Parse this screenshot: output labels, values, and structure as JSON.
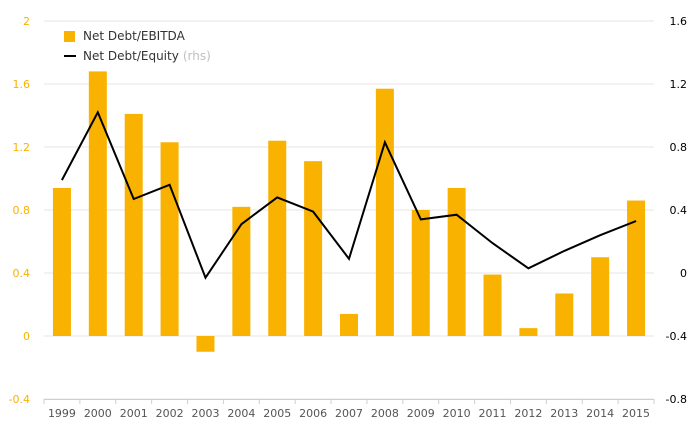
{
  "chart_data": {
    "type": "bar",
    "categories": [
      "1999",
      "2000",
      "2001",
      "2002",
      "2003",
      "2004",
      "2005",
      "2006",
      "2007",
      "2008",
      "2009",
      "2010",
      "2011",
      "2012",
      "2013",
      "2014",
      "2015"
    ],
    "series": [
      {
        "name": "Net Debt/EBITDA",
        "type": "bar",
        "axis": "left",
        "color": "#f9b200",
        "values": [
          0.94,
          1.68,
          1.41,
          1.23,
          -0.1,
          0.82,
          1.24,
          1.11,
          0.14,
          1.57,
          0.8,
          0.94,
          0.39,
          0.05,
          0.27,
          0.5,
          0.86
        ]
      },
      {
        "name": "Net Debt/Equity",
        "rhs_note": "(rhs)",
        "type": "line",
        "axis": "right",
        "color": "#000000",
        "values": [
          0.59,
          1.02,
          0.47,
          0.56,
          -0.03,
          0.31,
          0.48,
          0.39,
          0.09,
          0.83,
          0.34,
          0.37,
          0.19,
          0.03,
          0.14,
          0.24,
          0.33
        ]
      }
    ],
    "yaxis_left": {
      "min": -0.4,
      "max": 2,
      "ticks": [
        "2",
        "1.6",
        "1.2",
        "0.8",
        "0.4",
        "0",
        "-0.4"
      ],
      "color": "#f9b200"
    },
    "yaxis_right": {
      "min": -0.8,
      "max": 1.6,
      "ticks": [
        "1.6",
        "1.2",
        "0.8",
        "0.4",
        "0",
        "-0.4",
        "-0.8"
      ],
      "color": "#000000"
    },
    "legend_position": "top-left",
    "grid": true
  }
}
